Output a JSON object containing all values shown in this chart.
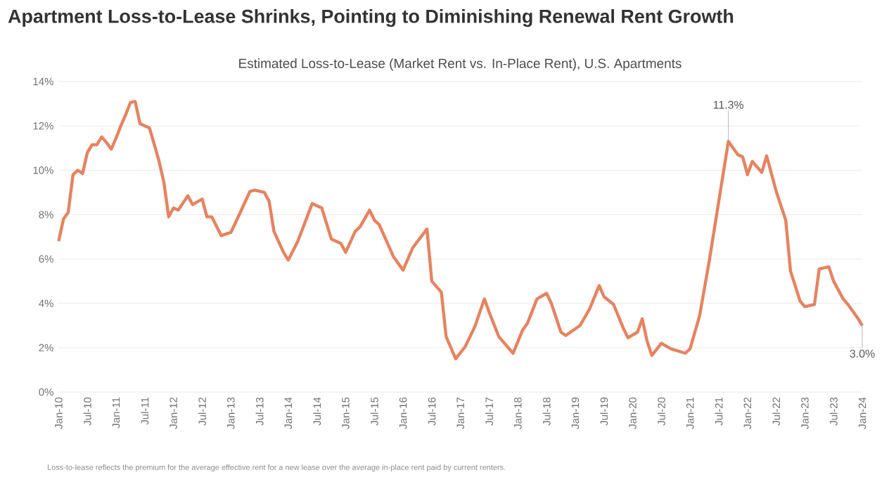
{
  "chart_data": {
    "type": "line",
    "title": "Apartment Loss-to-Lease Shrinks, Pointing to Diminishing Renewal Rent Growth",
    "subtitle": "Estimated Loss-to-Lease (Market Rent vs. In-Place Rent), U.S. Apartments",
    "annotations": [
      {
        "text": "11.3%",
        "x": "2021-09",
        "y": 11.3
      },
      {
        "text": "3.0%",
        "x": "2024-01",
        "y": 3.0
      },
      "Loss-to-lease reflects the premium for the average effective rent for a new lease over the average in-place rent paid by current renters."
    ],
    "series": [
      {
        "color": "#e8825f",
        "x": [
          "2010-01",
          "2010-02",
          "2010-03",
          "2010-04",
          "2010-05",
          "2010-06",
          "2010-07",
          "2010-08",
          "2010-09",
          "2010-10",
          "2010-11",
          "2010-12",
          "2011-01",
          "2011-02",
          "2011-03",
          "2011-04",
          "2011-05",
          "2011-06",
          "2011-08",
          "2011-09",
          "2011-10",
          "2011-11",
          "2011-12",
          "2012-01",
          "2012-02",
          "2012-04",
          "2012-05",
          "2012-07",
          "2012-08",
          "2012-09",
          "2012-11",
          "2013-01",
          "2013-02",
          "2013-05",
          "2013-06",
          "2013-08",
          "2013-09",
          "2013-10",
          "2013-12",
          "2014-01",
          "2014-03",
          "2014-06",
          "2014-08",
          "2014-10",
          "2014-12",
          "2015-01",
          "2015-03",
          "2015-04",
          "2015-06",
          "2015-07",
          "2015-08",
          "2015-11",
          "2016-01",
          "2016-03",
          "2016-06",
          "2016-07",
          "2016-09",
          "2016-10",
          "2016-12",
          "2017-02",
          "2017-04",
          "2017-06",
          "2017-07",
          "2017-09",
          "2017-12",
          "2018-02",
          "2018-03",
          "2018-05",
          "2018-07",
          "2018-08",
          "2018-10",
          "2018-11",
          "2019-02",
          "2019-04",
          "2019-06",
          "2019-07",
          "2019-09",
          "2019-11",
          "2019-12",
          "2020-02",
          "2020-03",
          "2020-04",
          "2020-05",
          "2020-07",
          "2020-09",
          "2020-12",
          "2021-01",
          "2021-03",
          "2021-05",
          "2021-07",
          "2021-09",
          "2021-11",
          "2021-12",
          "2022-01",
          "2022-02",
          "2022-04",
          "2022-05",
          "2022-07",
          "2022-09",
          "2022-10",
          "2022-12",
          "2023-01",
          "2023-03",
          "2023-04",
          "2023-06",
          "2023-07",
          "2023-09",
          "2023-10",
          "2023-12",
          "2024-01"
        ],
        "values": [
          6.8,
          7.8,
          8.1,
          9.8,
          10.0,
          9.85,
          10.8,
          11.15,
          11.15,
          11.5,
          11.25,
          10.95,
          11.45,
          12.0,
          12.5,
          13.05,
          13.1,
          12.1,
          11.9,
          11.15,
          10.4,
          9.45,
          7.9,
          8.3,
          8.2,
          8.85,
          8.45,
          8.7,
          7.9,
          7.9,
          7.05,
          7.2,
          7.65,
          9.05,
          9.1,
          9.0,
          8.6,
          7.25,
          6.3,
          5.95,
          6.8,
          8.5,
          8.3,
          6.9,
          6.7,
          6.3,
          7.25,
          7.45,
          8.2,
          7.75,
          7.55,
          6.1,
          5.5,
          6.5,
          7.35,
          5.0,
          4.5,
          2.5,
          1.5,
          2.05,
          2.95,
          4.2,
          3.6,
          2.5,
          1.75,
          2.8,
          3.1,
          4.2,
          4.45,
          4.0,
          2.7,
          2.55,
          3.0,
          3.75,
          4.8,
          4.3,
          3.95,
          2.9,
          2.45,
          2.7,
          3.3,
          2.3,
          1.65,
          2.2,
          1.95,
          1.75,
          1.95,
          3.45,
          5.9,
          8.6,
          11.3,
          10.7,
          10.6,
          9.8,
          10.4,
          9.9,
          10.65,
          9.05,
          7.75,
          5.45,
          4.1,
          3.85,
          3.95,
          5.55,
          5.65,
          5.0,
          4.2,
          3.95,
          3.35,
          3.0
        ]
      }
    ],
    "xlim": [
      "2010-01",
      "2024-01"
    ],
    "ylim": [
      0,
      14
    ],
    "yticks": [
      {
        "value": 0,
        "label": "0%"
      },
      {
        "value": 2,
        "label": "2%"
      },
      {
        "value": 4,
        "label": "4%"
      },
      {
        "value": 6,
        "label": "6%"
      },
      {
        "value": 8,
        "label": "8%"
      },
      {
        "value": 10,
        "label": "10%"
      },
      {
        "value": 12,
        "label": "12%"
      },
      {
        "value": 14,
        "label": "14%"
      }
    ],
    "xticks": [
      {
        "value": "2010-01",
        "label": "Jan-10"
      },
      {
        "value": "2010-07",
        "label": "Jul-10"
      },
      {
        "value": "2011-01",
        "label": "Jan-11"
      },
      {
        "value": "2011-07",
        "label": "Jul-11"
      },
      {
        "value": "2012-01",
        "label": "Jan-12"
      },
      {
        "value": "2012-07",
        "label": "Jul-12"
      },
      {
        "value": "2013-01",
        "label": "Jan-13"
      },
      {
        "value": "2013-07",
        "label": "Jul-13"
      },
      {
        "value": "2014-01",
        "label": "Jan-14"
      },
      {
        "value": "2014-07",
        "label": "Jul-14"
      },
      {
        "value": "2015-01",
        "label": "Jan-15"
      },
      {
        "value": "2015-07",
        "label": "Jul-15"
      },
      {
        "value": "2016-01",
        "label": "Jan-16"
      },
      {
        "value": "2016-07",
        "label": "Jul-16"
      },
      {
        "value": "2017-01",
        "label": "Jan-17"
      },
      {
        "value": "2017-07",
        "label": "Jul-17"
      },
      {
        "value": "2018-01",
        "label": "Jan-18"
      },
      {
        "value": "2018-07",
        "label": "Jul-18"
      },
      {
        "value": "2019-01",
        "label": "Jan-19"
      },
      {
        "value": "2019-07",
        "label": "Jul-19"
      },
      {
        "value": "2020-01",
        "label": "Jan-20"
      },
      {
        "value": "2020-07",
        "label": "Jul-20"
      },
      {
        "value": "2021-01",
        "label": "Jan-21"
      },
      {
        "value": "2021-07",
        "label": "Jul-21"
      },
      {
        "value": "2022-01",
        "label": "Jan-22"
      },
      {
        "value": "2022-07",
        "label": "Jul-22"
      },
      {
        "value": "2023-01",
        "label": "Jan-23"
      },
      {
        "value": "2023-07",
        "label": "Jul-23"
      },
      {
        "value": "2024-01",
        "label": "Jan-24"
      }
    ],
    "grid": "y",
    "marker": "none",
    "line_style": "solid"
  }
}
